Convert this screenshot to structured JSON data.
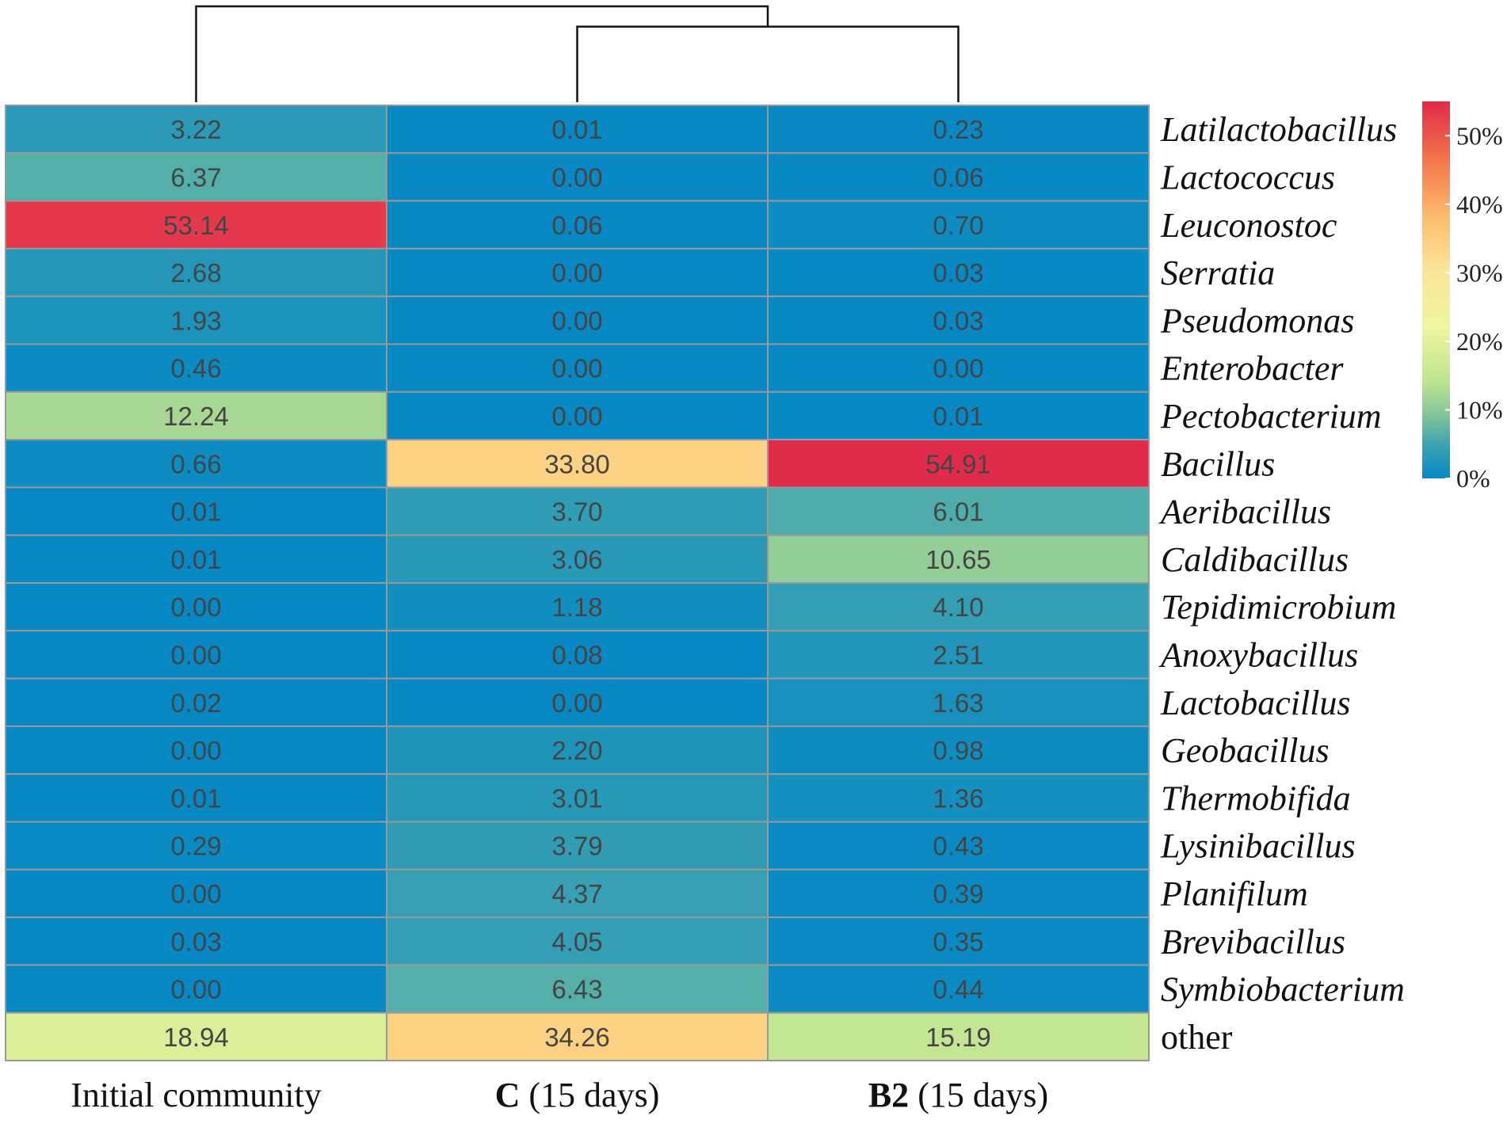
{
  "chart_data": {
    "type": "heatmap",
    "title": "",
    "columns": [
      {
        "bold": "",
        "rest": "Initial community"
      },
      {
        "bold": "C",
        "rest": " (15 days)"
      },
      {
        "bold": "B2",
        "rest": " (15 days)"
      }
    ],
    "rows": [
      {
        "label": "Latilactobacillus",
        "italic": true,
        "labels": [
          "3.22",
          "0.01",
          "0.23"
        ]
      },
      {
        "label": "Lactococcus",
        "italic": true,
        "labels": [
          "6.37",
          "0.00",
          "0.06"
        ]
      },
      {
        "label": "Leuconostoc",
        "italic": true,
        "labels": [
          "53.14",
          "0.06",
          "0.70"
        ]
      },
      {
        "label": "Serratia",
        "italic": true,
        "labels": [
          "2.68",
          "0.00",
          "0.03"
        ]
      },
      {
        "label": "Pseudomonas",
        "italic": true,
        "labels": [
          "1.93",
          "0.00",
          "0.03"
        ]
      },
      {
        "label": "Enterobacter",
        "italic": true,
        "labels": [
          "0.46",
          "0.00",
          "0.00"
        ]
      },
      {
        "label": "Pectobacterium",
        "italic": true,
        "labels": [
          "12.24",
          "0.00",
          "0.01"
        ]
      },
      {
        "label": "Bacillus",
        "italic": true,
        "labels": [
          "0.66",
          "33.80",
          "54.91"
        ]
      },
      {
        "label": "Aeribacillus",
        "italic": true,
        "labels": [
          "0.01",
          "3.70",
          "6.01"
        ]
      },
      {
        "label": "Caldibacillus",
        "italic": true,
        "labels": [
          "0.01",
          "3.06",
          "10.65"
        ]
      },
      {
        "label": "Tepidimicrobium",
        "italic": true,
        "labels": [
          "0.00",
          "1.18",
          "4.10"
        ]
      },
      {
        "label": "Anoxybacillus",
        "italic": true,
        "labels": [
          "0.00",
          "0.08",
          "2.51"
        ]
      },
      {
        "label": "Lactobacillus",
        "italic": true,
        "labels": [
          "0.02",
          "0.00",
          "1.63"
        ]
      },
      {
        "label": "Geobacillus",
        "italic": true,
        "labels": [
          "0.00",
          "2.20",
          "0.98"
        ]
      },
      {
        "label": "Thermobifida",
        "italic": true,
        "labels": [
          "0.01",
          "3.01",
          "1.36"
        ]
      },
      {
        "label": "Lysinibacillus",
        "italic": true,
        "labels": [
          "0.29",
          "3.79",
          "0.43"
        ]
      },
      {
        "label": "Planifilum",
        "italic": true,
        "labels": [
          "0.00",
          "4.37",
          "0.39"
        ]
      },
      {
        "label": "Brevibacillus",
        "italic": true,
        "labels": [
          "0.03",
          "4.05",
          "0.35"
        ]
      },
      {
        "label": "Symbiobacterium",
        "italic": true,
        "labels": [
          "0.00",
          "6.43",
          "0.44"
        ]
      },
      {
        "label": "other",
        "italic": false,
        "labels": [
          "18.94",
          "34.26",
          "15.19"
        ]
      }
    ],
    "color_scale": {
      "range": [
        0,
        55
      ],
      "ticks": [
        {
          "value": 0,
          "label": "0%"
        },
        {
          "value": 10,
          "label": "10%"
        },
        {
          "value": 20,
          "label": "20%"
        },
        {
          "value": 30,
          "label": "30%"
        },
        {
          "value": 40,
          "label": "40%"
        },
        {
          "value": 50,
          "label": "50%"
        }
      ],
      "stops": [
        {
          "value": 0,
          "color": "#0588c4"
        },
        {
          "value": 5,
          "color": "#3ea4b0"
        },
        {
          "value": 9,
          "color": "#7fc39a"
        },
        {
          "value": 14,
          "color": "#bde38f"
        },
        {
          "value": 22,
          "color": "#eef6a0"
        },
        {
          "value": 30,
          "color": "#fbe79a"
        },
        {
          "value": 38,
          "color": "#fdbd6e"
        },
        {
          "value": 46,
          "color": "#f4794c"
        },
        {
          "value": 55,
          "color": "#e02a4b"
        }
      ]
    },
    "dendrogram": {
      "merges": [
        {
          "left": "C (15 days)",
          "right": "B2 (15 days)",
          "height": 1
        },
        {
          "left": "Initial community",
          "right": "C+B2",
          "height": 2
        }
      ]
    },
    "cell_border_color": "#999999"
  }
}
